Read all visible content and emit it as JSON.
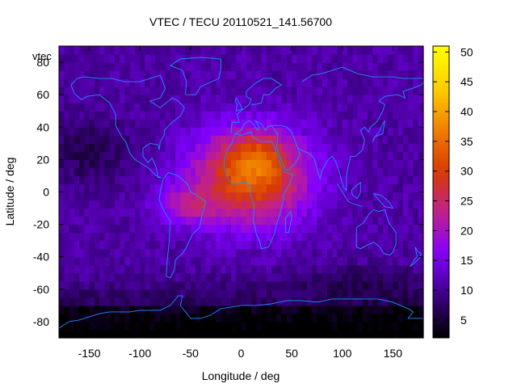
{
  "chart_data": {
    "type": "heatmap",
    "title": "VTEC / TECU 20110521_141.56700",
    "xlabel": "Longitude / deg",
    "ylabel": "Latitude / deg",
    "xlim": [
      -180,
      180
    ],
    "ylim": [
      -90,
      90
    ],
    "x_ticks": [
      -150,
      -100,
      -50,
      0,
      50,
      100,
      150
    ],
    "y_ticks": [
      -80,
      -60,
      -40,
      -20,
      0,
      20,
      40,
      60,
      80
    ],
    "colorbar_ticks": [
      5,
      10,
      15,
      20,
      25,
      30,
      35,
      40,
      45,
      50
    ],
    "colorbar_range": [
      2,
      51
    ],
    "corner_label": "vtec",
    "grid_resolution_deg": 5,
    "peak": {
      "lon": 15,
      "lat": 22,
      "value": 40
    },
    "palette": [
      "#000000",
      "#3a0080",
      "#8000ff",
      "#c0208f",
      "#d83a00",
      "#f08000",
      "#ffd000",
      "#ffff00"
    ],
    "coastline_color": "#1e8cff"
  }
}
